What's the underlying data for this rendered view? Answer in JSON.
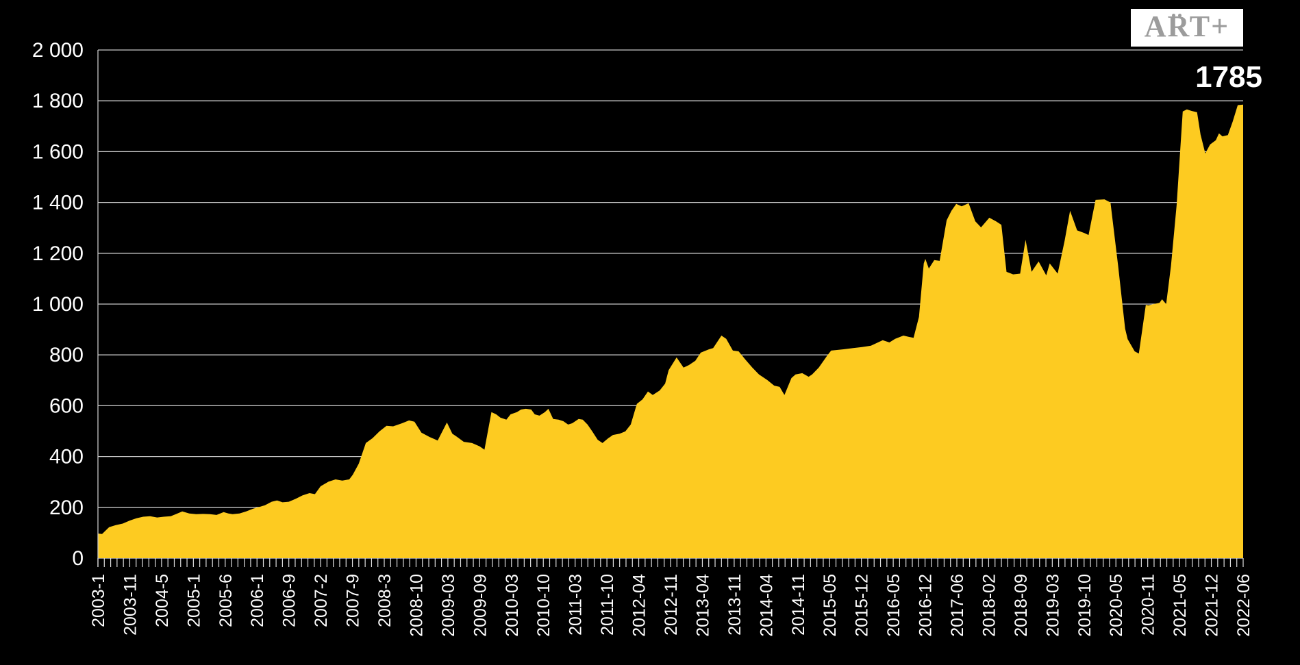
{
  "logo": {
    "text": "ART+"
  },
  "colors": {
    "background": "#000000",
    "area_fill": "#FDCB21",
    "gridline": "#C9C9C9",
    "axis_line": "#C9C9C9",
    "tick": "#E0E0E0",
    "axis_text": "#FFFFFF",
    "logo_bg": "#FFFFFF",
    "logo_text_color": "#9C9C9C",
    "annotation_text": "#FFFFFF"
  },
  "chart_data": {
    "type": "area",
    "title": "",
    "xlabel": "",
    "ylabel": "",
    "ylim": [
      0,
      2000
    ],
    "grid": true,
    "legend": false,
    "y_tick_values": [
      0,
      200,
      400,
      600,
      800,
      1000,
      1200,
      1400,
      1600,
      1800,
      2000
    ],
    "y_tick_labels": [
      "0",
      "200",
      "400",
      "600",
      "800",
      "1 000",
      "1 200",
      "1 400",
      "1 600",
      "1 800",
      "2 000"
    ],
    "x_tick_labels": [
      "2003-1",
      "2003-11",
      "2004-5",
      "2005-1",
      "2005-6",
      "2006-1",
      "2006-9",
      "2007-2",
      "2007-9",
      "2008-3",
      "2008-10",
      "2009-03",
      "2009-09",
      "2010-03",
      "2010-10",
      "2011-03",
      "2011-10",
      "2012-04",
      "2012-11",
      "2013-04",
      "2013-11",
      "2014-04",
      "2014-11",
      "2015-05",
      "2015-12",
      "2016-05",
      "2016-12",
      "2017-06",
      "2018-02",
      "2018-09",
      "2019-03",
      "2019-10",
      "2020-05",
      "2020-11",
      "2021-05",
      "2021-12",
      "2022-06"
    ],
    "minor_ticks_per_label": 5,
    "final_annotation": {
      "text": "1785",
      "value": 1785
    },
    "points": [
      [
        0,
        97
      ],
      [
        0.13,
        95
      ],
      [
        0.35,
        122
      ],
      [
        0.56,
        130
      ],
      [
        0.78,
        136
      ],
      [
        1.0,
        148
      ],
      [
        1.21,
        157
      ],
      [
        1.42,
        163
      ],
      [
        1.64,
        165
      ],
      [
        1.86,
        160
      ],
      [
        2.07,
        163
      ],
      [
        2.29,
        165
      ],
      [
        2.5,
        176
      ],
      [
        2.65,
        184
      ],
      [
        2.87,
        176
      ],
      [
        3.09,
        173
      ],
      [
        3.3,
        174
      ],
      [
        3.52,
        173
      ],
      [
        3.73,
        170
      ],
      [
        3.95,
        181
      ],
      [
        4.1,
        176
      ],
      [
        4.23,
        173
      ],
      [
        4.45,
        176
      ],
      [
        4.66,
        184
      ],
      [
        4.88,
        195
      ],
      [
        5.03,
        200
      ],
      [
        5.25,
        208
      ],
      [
        5.46,
        222
      ],
      [
        5.63,
        227
      ],
      [
        5.8,
        220
      ],
      [
        6.0,
        222
      ],
      [
        6.22,
        234
      ],
      [
        6.43,
        247
      ],
      [
        6.65,
        256
      ],
      [
        6.82,
        252
      ],
      [
        7.0,
        283
      ],
      [
        7.25,
        301
      ],
      [
        7.47,
        310
      ],
      [
        7.68,
        305
      ],
      [
        7.9,
        310
      ],
      [
        8.01,
        328
      ],
      [
        8.2,
        372
      ],
      [
        8.42,
        453
      ],
      [
        8.63,
        472
      ],
      [
        8.85,
        499
      ],
      [
        9.07,
        521
      ],
      [
        9.28,
        519
      ],
      [
        9.56,
        531
      ],
      [
        9.78,
        542
      ],
      [
        9.95,
        537
      ],
      [
        10.17,
        494
      ],
      [
        10.42,
        477
      ],
      [
        10.68,
        463
      ],
      [
        10.97,
        534
      ],
      [
        11.14,
        490
      ],
      [
        11.29,
        477
      ],
      [
        11.5,
        458
      ],
      [
        11.76,
        453
      ],
      [
        12.0,
        440
      ],
      [
        12.15,
        427
      ],
      [
        12.37,
        575
      ],
      [
        12.52,
        566
      ],
      [
        12.65,
        553
      ],
      [
        12.84,
        545
      ],
      [
        12.97,
        566
      ],
      [
        13.17,
        575
      ],
      [
        13.3,
        585
      ],
      [
        13.45,
        588
      ],
      [
        13.62,
        585
      ],
      [
        13.73,
        566
      ],
      [
        13.88,
        561
      ],
      [
        14.05,
        575
      ],
      [
        14.16,
        588
      ],
      [
        14.31,
        548
      ],
      [
        14.48,
        545
      ],
      [
        14.63,
        539
      ],
      [
        14.78,
        526
      ],
      [
        14.91,
        531
      ],
      [
        15.11,
        548
      ],
      [
        15.24,
        545
      ],
      [
        15.39,
        526
      ],
      [
        15.54,
        499
      ],
      [
        15.71,
        466
      ],
      [
        15.86,
        453
      ],
      [
        16.04,
        472
      ],
      [
        16.19,
        485
      ],
      [
        16.4,
        490
      ],
      [
        16.58,
        499
      ],
      [
        16.75,
        526
      ],
      [
        16.94,
        607
      ],
      [
        17.12,
        625
      ],
      [
        17.29,
        656
      ],
      [
        17.44,
        642
      ],
      [
        17.66,
        660
      ],
      [
        17.83,
        687
      ],
      [
        17.94,
        740
      ],
      [
        18.19,
        790
      ],
      [
        18.41,
        750
      ],
      [
        18.58,
        760
      ],
      [
        18.78,
        777
      ],
      [
        18.95,
        809
      ],
      [
        19.21,
        822
      ],
      [
        19.34,
        827
      ],
      [
        19.6,
        876
      ],
      [
        19.75,
        863
      ],
      [
        19.96,
        817
      ],
      [
        20.14,
        814
      ],
      [
        20.35,
        782
      ],
      [
        20.57,
        750
      ],
      [
        20.78,
        723
      ],
      [
        21.04,
        701
      ],
      [
        21.26,
        679
      ],
      [
        21.43,
        674
      ],
      [
        21.58,
        642
      ],
      [
        21.8,
        709
      ],
      [
        21.93,
        723
      ],
      [
        22.14,
        728
      ],
      [
        22.34,
        714
      ],
      [
        22.45,
        723
      ],
      [
        22.66,
        750
      ],
      [
        22.94,
        800
      ],
      [
        23.05,
        817
      ],
      [
        23.44,
        822
      ],
      [
        23.74,
        827
      ],
      [
        24.02,
        831
      ],
      [
        24.3,
        836
      ],
      [
        24.52,
        849
      ],
      [
        24.67,
        858
      ],
      [
        24.88,
        849
      ],
      [
        25.06,
        863
      ],
      [
        25.32,
        876
      ],
      [
        25.49,
        871
      ],
      [
        25.64,
        867
      ],
      [
        25.81,
        950
      ],
      [
        25.96,
        1160
      ],
      [
        26.01,
        1178
      ],
      [
        26.12,
        1140
      ],
      [
        26.29,
        1173
      ],
      [
        26.46,
        1170
      ],
      [
        26.68,
        1330
      ],
      [
        26.83,
        1367
      ],
      [
        26.98,
        1394
      ],
      [
        27.15,
        1385
      ],
      [
        27.37,
        1397
      ],
      [
        27.58,
        1326
      ],
      [
        27.76,
        1302
      ],
      [
        28.02,
        1340
      ],
      [
        28.23,
        1326
      ],
      [
        28.4,
        1312
      ],
      [
        28.56,
        1127
      ],
      [
        28.77,
        1117
      ],
      [
        28.99,
        1120
      ],
      [
        29.16,
        1253
      ],
      [
        29.35,
        1127
      ],
      [
        29.57,
        1168
      ],
      [
        29.81,
        1113
      ],
      [
        29.92,
        1160
      ],
      [
        30.17,
        1120
      ],
      [
        30.39,
        1250
      ],
      [
        30.56,
        1367
      ],
      [
        30.78,
        1290
      ],
      [
        31.0,
        1280
      ],
      [
        31.14,
        1272
      ],
      [
        31.36,
        1410
      ],
      [
        31.64,
        1412
      ],
      [
        31.83,
        1400
      ],
      [
        32.07,
        1150
      ],
      [
        32.29,
        903
      ],
      [
        32.37,
        862
      ],
      [
        32.59,
        814
      ],
      [
        32.72,
        805
      ],
      [
        32.94,
        997
      ],
      [
        33.02,
        995
      ],
      [
        33.19,
        1000
      ],
      [
        33.37,
        1005
      ],
      [
        33.45,
        1019
      ],
      [
        33.58,
        1000
      ],
      [
        33.73,
        1150
      ],
      [
        33.91,
        1390
      ],
      [
        34.1,
        1758
      ],
      [
        34.23,
        1766
      ],
      [
        34.38,
        1760
      ],
      [
        34.55,
        1755
      ],
      [
        34.66,
        1667
      ],
      [
        34.81,
        1593
      ],
      [
        34.96,
        1628
      ],
      [
        35.14,
        1645
      ],
      [
        35.24,
        1672
      ],
      [
        35.35,
        1660
      ],
      [
        35.52,
        1665
      ],
      [
        35.67,
        1718
      ],
      [
        35.83,
        1783
      ],
      [
        36.0,
        1785
      ]
    ]
  }
}
